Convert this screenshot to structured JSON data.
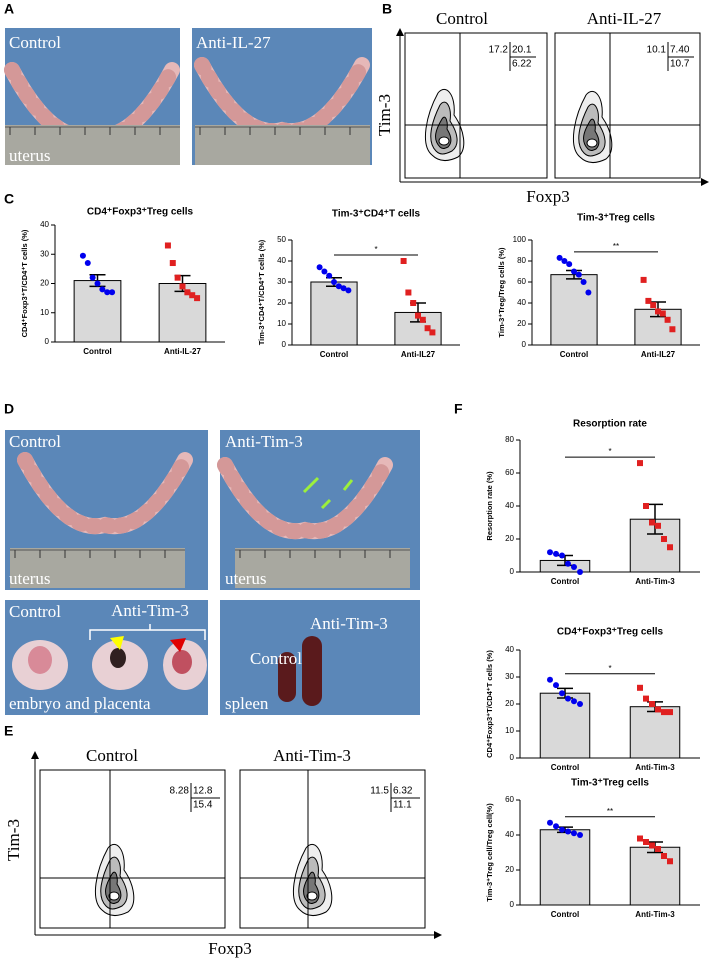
{
  "panel_labels": [
    "A",
    "B",
    "C",
    "D",
    "E",
    "F"
  ],
  "panel_a": {
    "photos": [
      {
        "group": "Control",
        "tissue": "uterus"
      },
      {
        "group": "Anti-IL-27"
      }
    ]
  },
  "panel_b": {
    "plots": [
      {
        "title": "Control",
        "quadrants": [
          "17.2",
          "20.1",
          "6.22"
        ]
      },
      {
        "title": "Anti-IL-27",
        "quadrants": [
          "10.1",
          "7.40",
          "10.7"
        ]
      }
    ],
    "y_label": "Tim-3",
    "x_label": "Foxp3"
  },
  "panel_d": {
    "uterus": [
      {
        "group": "Control",
        "tissue": "uterus"
      },
      {
        "group": "Anti-Tim-3",
        "tissue": "uterus"
      }
    ],
    "embryo": {
      "control": "Control",
      "treated": "Anti-Tim-3",
      "tissue": "embryo and placenta"
    },
    "spleen": {
      "control": "Control",
      "treated": "Anti-Tim-3",
      "tissue": "spleen"
    }
  },
  "panel_e": {
    "plots": [
      {
        "title": "Control",
        "quadrants": [
          "8.28",
          "12.8",
          "15.4"
        ]
      },
      {
        "title": "Anti-Tim-3",
        "quadrants": [
          "11.5",
          "6.32",
          "11.1"
        ]
      }
    ],
    "y_label": "Tim-3",
    "x_label": "Foxp3"
  },
  "chart_data": [
    {
      "type": "bar",
      "title": "CD4⁺Foxp3⁺Treg cells",
      "y_label": "CD4⁺Foxp3⁺T/CD4⁺T cells (%)",
      "categories": [
        "Control",
        "Anti-IL-27"
      ],
      "values": [
        21,
        20
      ],
      "errors": [
        2,
        2.7
      ],
      "points": [
        [
          29.5,
          27,
          22,
          20,
          18,
          17,
          17
        ],
        [
          33,
          27,
          22,
          19,
          17,
          16,
          15
        ]
      ],
      "color": "#d9d9d9",
      "point_colors": [
        "#0000ee",
        "#e02020"
      ],
      "ylim": [
        0,
        40
      ],
      "yticks": [
        0,
        10,
        20,
        30,
        40
      ]
    },
    {
      "type": "bar",
      "title": "Tim-3⁺CD4⁺T cells",
      "y_label": "Tim-3⁺CD4⁺T/CD4⁺T cells (%)",
      "categories": [
        "Control",
        "Anti-IL27"
      ],
      "values": [
        30,
        15.5
      ],
      "errors": [
        2,
        4.5
      ],
      "points": [
        [
          37,
          35,
          33,
          30,
          28,
          27,
          26
        ],
        [
          40,
          25,
          20,
          14,
          12,
          8,
          6
        ]
      ],
      "color": "#d9d9d9",
      "point_colors": [
        "#0000ee",
        "#e02020"
      ],
      "ylim": [
        0,
        50
      ],
      "yticks": [
        0,
        10,
        20,
        30,
        40,
        50
      ],
      "significance": "*"
    },
    {
      "type": "bar",
      "title": "Tim-3⁺Treg cells",
      "y_label": "Tim-3⁺Treg/Treg cells (%)",
      "categories": [
        "Control",
        "Anti-IL27"
      ],
      "values": [
        67,
        34
      ],
      "errors": [
        4,
        7
      ],
      "points": [
        [
          83,
          80,
          77,
          70,
          67,
          60,
          50
        ],
        [
          62,
          42,
          38,
          32,
          30,
          24,
          15
        ]
      ],
      "color": "#d9d9d9",
      "point_colors": [
        "#0000ee",
        "#e02020"
      ],
      "ylim": [
        0,
        100
      ],
      "yticks": [
        0,
        20,
        40,
        60,
        80,
        100
      ],
      "significance": "**"
    },
    {
      "type": "bar",
      "title": "Resorption rate",
      "y_label": "Resorption rate (%)",
      "categories": [
        "Control",
        "Anti-Tim-3"
      ],
      "values": [
        7,
        32
      ],
      "errors": [
        3,
        9
      ],
      "points": [
        [
          12,
          11,
          10,
          5,
          3,
          0
        ],
        [
          66,
          40,
          30,
          28,
          20,
          15
        ]
      ],
      "color": "#d9d9d9",
      "point_colors": [
        "#0000ee",
        "#e02020"
      ],
      "ylim": [
        0,
        80
      ],
      "yticks": [
        0,
        20,
        40,
        60,
        80
      ],
      "significance": "*"
    },
    {
      "type": "bar",
      "title": "CD4⁺Foxp3⁺Treg cells",
      "y_label": "CD4⁺Foxp3⁺T/CD4⁺T cells (%)",
      "categories": [
        "Control",
        "Anti-Tim-3"
      ],
      "values": [
        24,
        19
      ],
      "errors": [
        1.8,
        1.8
      ],
      "points": [
        [
          29,
          27,
          24,
          22,
          21,
          20
        ],
        [
          26,
          22,
          20,
          18,
          17,
          17
        ]
      ],
      "color": "#d9d9d9",
      "point_colors": [
        "#0000ee",
        "#e02020"
      ],
      "ylim": [
        0,
        40
      ],
      "yticks": [
        0,
        10,
        20,
        30,
        40
      ],
      "significance": "*"
    },
    {
      "type": "bar",
      "title": "Tim-3⁺Treg cells",
      "y_label": "Tim-3⁺Treg cell/Treg cell(%)",
      "categories": [
        "Control",
        "Anti-Tim-3"
      ],
      "values": [
        43,
        33
      ],
      "errors": [
        1.5,
        3
      ],
      "points": [
        [
          47,
          45,
          43,
          42,
          41,
          40
        ],
        [
          38,
          36,
          34,
          32,
          28,
          25
        ]
      ],
      "color": "#d9d9d9",
      "point_colors": [
        "#0000ee",
        "#e02020"
      ],
      "ylim": [
        0,
        60
      ],
      "yticks": [
        0,
        20,
        40,
        60
      ],
      "significance": "**"
    }
  ]
}
